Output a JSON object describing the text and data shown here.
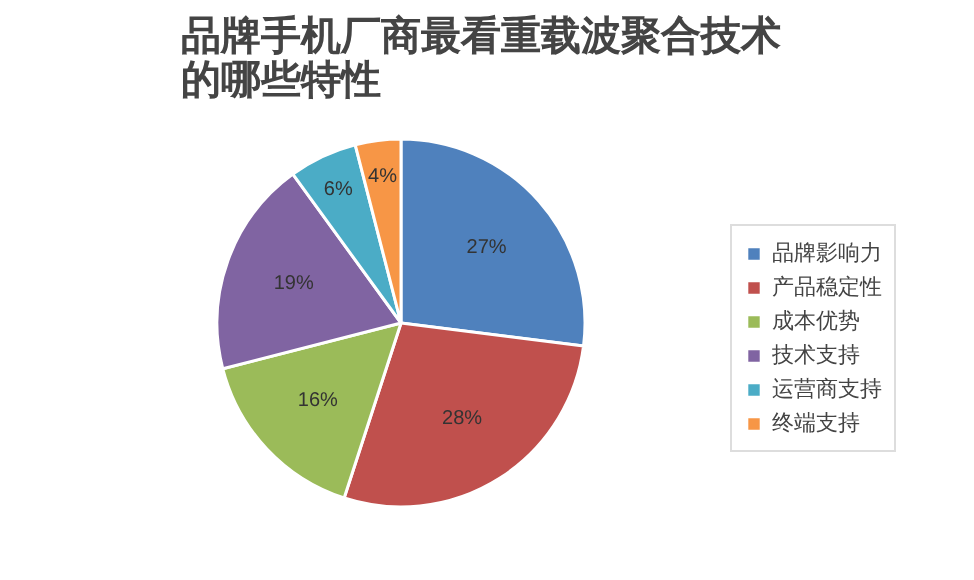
{
  "chart_data": {
    "type": "pie",
    "title": "品牌手机厂商最看重载波聚合技术的哪些特性",
    "categories": [
      "品牌影响力",
      "产品稳定性",
      "成本优势",
      "技术支持",
      "运营商支持",
      "终端支持"
    ],
    "values": [
      27,
      28,
      16,
      19,
      6,
      4
    ],
    "value_labels": [
      "27%",
      "28%",
      "16%",
      "19%",
      "6%",
      "4%"
    ],
    "colors": [
      "#4f81bd",
      "#c0504d",
      "#9bbb59",
      "#8064a2",
      "#4bacc6",
      "#f79646"
    ],
    "legend": "right"
  }
}
